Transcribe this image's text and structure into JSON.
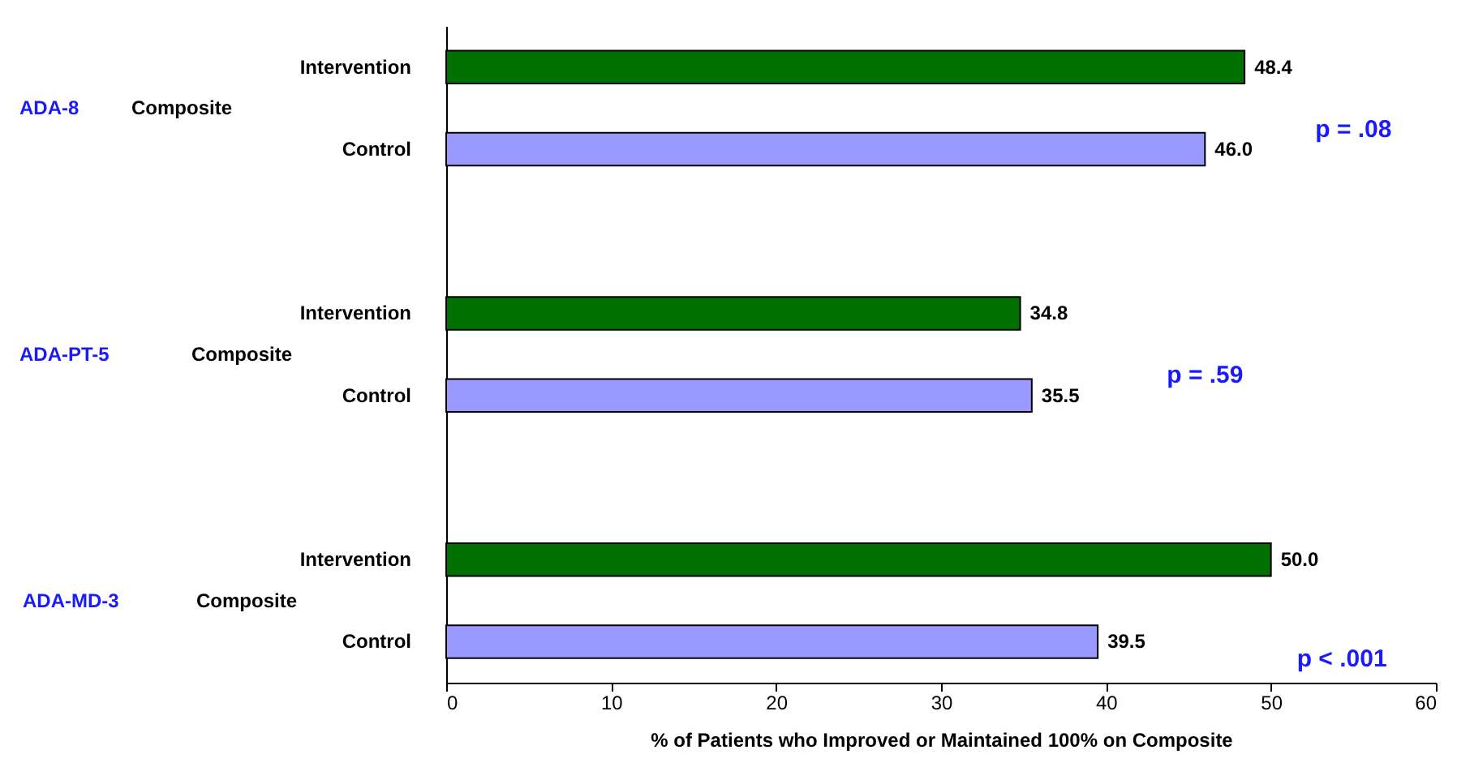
{
  "chart_data": {
    "type": "bar",
    "orientation": "horizontal",
    "categories": [
      "Intervention",
      "Control",
      "Intervention",
      "Control",
      "Intervention",
      "Control"
    ],
    "values": [
      48.4,
      46.0,
      34.8,
      35.5,
      50.0,
      39.5
    ],
    "colors": [
      "#007000",
      "#9999ff",
      "#007000",
      "#9999ff",
      "#007000",
      "#9999ff"
    ],
    "value_labels": [
      "48.4",
      "46.0",
      "34.8",
      "35.5",
      "50.0",
      "39.5"
    ],
    "xlim": [
      0,
      60
    ],
    "xticks": [
      0,
      10,
      20,
      30,
      40,
      50,
      60
    ],
    "xlabel": "% of Patients who Improved or Maintained 100% on Composite",
    "annotations": [
      "ADA-8",
      "Composite",
      "p = .08",
      "ADA-PT-5",
      "Composite",
      "p = .59",
      "ADA-MD-3",
      "Composite",
      "p < .001"
    ],
    "grid": false
  }
}
